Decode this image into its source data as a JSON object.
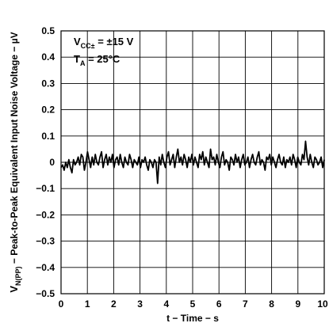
{
  "chart_data": {
    "type": "line",
    "title": "",
    "xlabel": "t − Time − s",
    "ylabel_main": "V",
    "ylabel_sub": "N(PP)",
    "ylabel_rest": "  − Peak-to-Peak Equivalent Input Noise Voltage − µV",
    "xlim": [
      0,
      10
    ],
    "ylim": [
      -0.5,
      0.5
    ],
    "xticks": [
      "0",
      "1",
      "2",
      "3",
      "4",
      "5",
      "6",
      "7",
      "8",
      "9",
      "10"
    ],
    "yticks": [
      "0.5",
      "0.4",
      "0.3",
      "0.2",
      "0.1",
      "0",
      "−0.1",
      "−0.2",
      "−0.3",
      "−0.4",
      "−0.5"
    ],
    "grid": true,
    "legend": "none",
    "annotations": {
      "vcc_main": "V",
      "vcc_sub": "CC±",
      "vcc_value": " =  ±15 V",
      "ta_main": "T",
      "ta_sub": "A",
      "ta_value": " = 25°C"
    },
    "series": [
      {
        "color": "#000000",
        "x_start": 0,
        "x_end": 10,
        "values": [
          -0.02,
          -0.01,
          -0.03,
          0.0,
          -0.02,
          0.01,
          -0.02,
          -0.04,
          0.01,
          -0.01,
          0.0,
          0.02,
          -0.01,
          0.03,
          0.02,
          -0.03,
          0.0,
          0.04,
          0.01,
          -0.02,
          0.02,
          -0.01,
          0.03,
          0.0,
          -0.01,
          0.02,
          0.04,
          -0.02,
          0.01,
          0.03,
          -0.01,
          0.02,
          0.0,
          0.03,
          -0.02,
          0.01,
          0.02,
          -0.01,
          0.03,
          0.0,
          -0.02,
          0.02,
          0.0,
          -0.01,
          0.03,
          0.01,
          -0.02,
          0.01,
          0.0,
          -0.01,
          0.02,
          -0.02,
          0.01,
          0.0,
          0.02,
          -0.01,
          -0.03,
          0.01,
          0.0,
          -0.02,
          0.01,
          0.0,
          -0.08,
          0.02,
          -0.01,
          0.03,
          0.0,
          -0.02,
          0.02,
          0.04,
          -0.01,
          0.01,
          0.03,
          -0.02,
          0.02,
          0.05,
          0.0,
          0.02,
          -0.01,
          0.03,
          0.01,
          -0.02,
          0.02,
          0.0,
          0.03,
          -0.01,
          0.02,
          0.0,
          -0.02,
          0.03,
          0.01,
          0.04,
          -0.01,
          0.02,
          0.0,
          -0.02,
          0.05,
          0.01,
          0.02,
          -0.01,
          0.03,
          0.0,
          -0.02,
          0.02,
          0.04,
          -0.01,
          0.01,
          0.0,
          -0.03,
          0.02,
          0.01,
          -0.01,
          0.03,
          0.0,
          0.02,
          -0.02,
          0.01,
          0.03,
          -0.01,
          0.0,
          0.02,
          -0.02,
          0.01,
          0.03,
          0.0,
          -0.01,
          0.02,
          0.04,
          -0.01,
          0.01,
          0.0,
          -0.03,
          0.02,
          0.01,
          0.03,
          -0.01,
          0.02,
          0.0,
          -0.02,
          0.01,
          0.03,
          0.0,
          -0.01,
          0.02,
          -0.02,
          0.01,
          0.0,
          0.02,
          -0.01,
          0.03,
          0.01,
          -0.02,
          0.02,
          0.0,
          -0.01,
          0.03,
          0.01,
          0.08,
          0.02,
          -0.01,
          0.03,
          0.0,
          -0.02,
          0.02,
          0.01,
          -0.01,
          0.0,
          0.02,
          -0.02,
          0.01
        ]
      }
    ]
  }
}
